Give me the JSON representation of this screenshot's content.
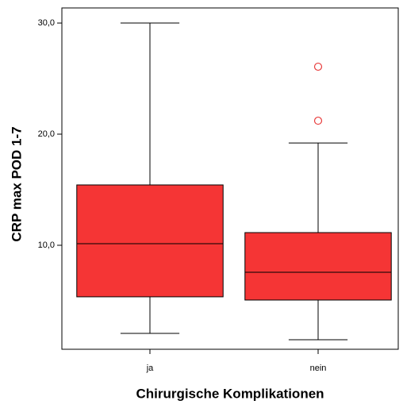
{
  "chart_data": {
    "type": "box",
    "x_label": "Chirurgische Komplikationen",
    "y_label": "CRP max POD 1-7",
    "categories": [
      "ja",
      "nein"
    ],
    "boxes": [
      {
        "whisker_low": 2.07,
        "q1": 5.36,
        "median": 10.14,
        "q3": 15.43,
        "whisker_high": 30.0,
        "outliers": []
      },
      {
        "whisker_low": 1.5,
        "q1": 5.07,
        "median": 7.57,
        "q3": 11.14,
        "whisker_high": 19.21,
        "outliers": [
          21.21,
          26.07
        ]
      }
    ],
    "color": "#f53535",
    "outlier_color": "#e83a3a",
    "ylim": [
      0.64,
      31.36
    ],
    "yticks": [
      {
        "value": 10,
        "label": "10,0"
      },
      {
        "value": 20,
        "label": "20,0"
      },
      {
        "value": 30,
        "label": "30,0"
      }
    ]
  }
}
